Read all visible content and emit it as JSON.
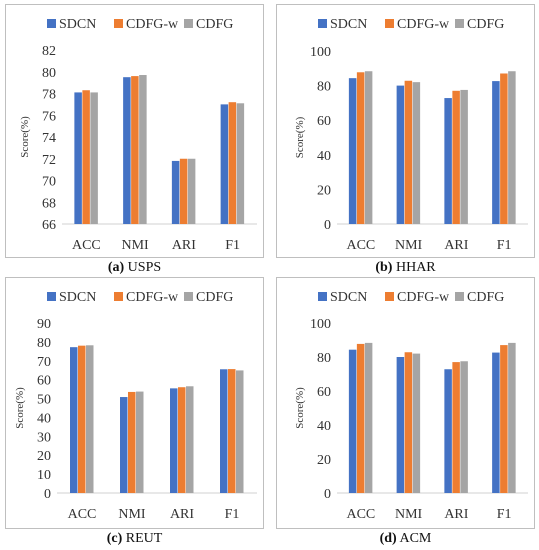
{
  "chart_data": [
    {
      "type": "bar",
      "caption_letter": "(a)",
      "caption_name": "USPS",
      "categories": [
        "ACC",
        "NMI",
        "ARI",
        "F1"
      ],
      "ylabel": "Score(%)",
      "ylim": [
        66,
        82
      ],
      "yticks": [
        66,
        68,
        70,
        72,
        74,
        76,
        78,
        80,
        82
      ],
      "legend_position": "top",
      "grid": false,
      "series": [
        {
          "name": "SDCN",
          "color": "#4472C4",
          "values": [
            78.1,
            79.5,
            71.8,
            77.0
          ]
        },
        {
          "name": "CDFG-w",
          "color": "#ED7D31",
          "values": [
            78.3,
            79.6,
            72.0,
            77.2
          ]
        },
        {
          "name": "CDFG",
          "color": "#A5A5A5",
          "values": [
            78.1,
            79.7,
            72.0,
            77.1
          ]
        }
      ]
    },
    {
      "type": "bar",
      "caption_letter": "(b)",
      "caption_name": "HHAR",
      "categories": [
        "ACC",
        "NMI",
        "ARI",
        "F1"
      ],
      "ylabel": "Score(%)",
      "ylim": [
        0,
        100
      ],
      "yticks": [
        0,
        20,
        40,
        60,
        80,
        100
      ],
      "legend_position": "top",
      "grid": false,
      "series": [
        {
          "name": "SDCN",
          "color": "#4472C4",
          "values": [
            84.3,
            80.0,
            72.8,
            82.6
          ]
        },
        {
          "name": "CDFG-w",
          "color": "#ED7D31",
          "values": [
            87.7,
            82.8,
            77.0,
            87.0
          ]
        },
        {
          "name": "CDFG",
          "color": "#A5A5A5",
          "values": [
            88.3,
            82.0,
            77.5,
            88.3
          ]
        }
      ]
    },
    {
      "type": "bar",
      "caption_letter": "(c)",
      "caption_name": "REUT",
      "categories": [
        "ACC",
        "NMI",
        "ARI",
        "F1"
      ],
      "ylabel": "Score(%)",
      "ylim": [
        0,
        90
      ],
      "yticks": [
        0,
        10,
        20,
        30,
        40,
        50,
        60,
        70,
        80,
        90
      ],
      "legend_position": "top",
      "grid": false,
      "series": [
        {
          "name": "SDCN",
          "color": "#4472C4",
          "values": [
            77.2,
            50.8,
            55.4,
            65.5
          ]
        },
        {
          "name": "CDFG-w",
          "color": "#ED7D31",
          "values": [
            78.0,
            53.5,
            56.0,
            65.6
          ]
        },
        {
          "name": "CDFG",
          "color": "#A5A5A5",
          "values": [
            78.2,
            53.7,
            56.5,
            64.9
          ]
        }
      ]
    },
    {
      "type": "bar",
      "caption_letter": "(d)",
      "caption_name": "ACM",
      "categories": [
        "ACC",
        "NMI",
        "ARI",
        "F1"
      ],
      "ylabel": "Score(%)",
      "ylim": [
        0,
        100
      ],
      "yticks": [
        0,
        20,
        40,
        60,
        80,
        100
      ],
      "legend_position": "top",
      "grid": false,
      "series": [
        {
          "name": "SDCN",
          "color": "#4472C4",
          "values": [
            84.3,
            80.0,
            72.8,
            82.6
          ]
        },
        {
          "name": "CDFG-w",
          "color": "#ED7D31",
          "values": [
            87.7,
            82.8,
            77.0,
            87.0
          ]
        },
        {
          "name": "CDFG",
          "color": "#A5A5A5",
          "values": [
            88.3,
            82.0,
            77.5,
            88.3
          ]
        }
      ]
    }
  ]
}
